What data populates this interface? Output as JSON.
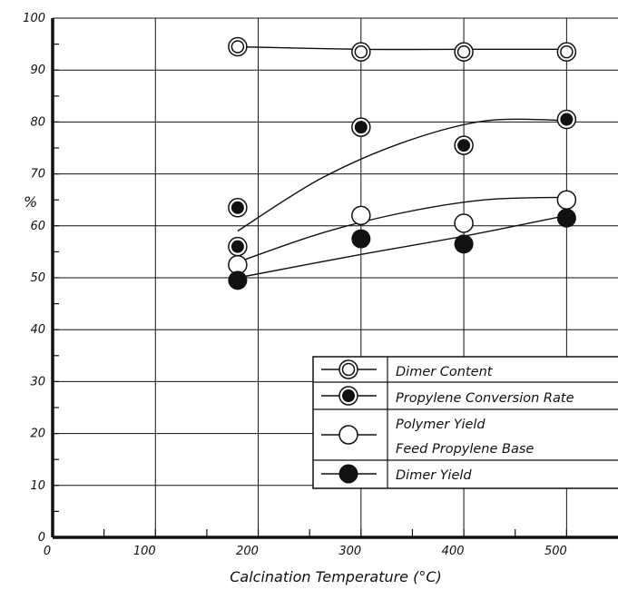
{
  "chart_data": {
    "type": "scatter",
    "title": "",
    "xlabel": "Calcination  Temperature  (°C)",
    "ylabel": "%",
    "xlim": [
      0,
      550
    ],
    "ylim": [
      0,
      100
    ],
    "x_ticks": [
      "0",
      "100",
      "200",
      "300",
      "400",
      "500"
    ],
    "y_ticks": [
      "0",
      "10",
      "20",
      "30",
      "40",
      "50",
      "60",
      "70",
      "80",
      "90",
      "100"
    ],
    "grid": true,
    "legend_position": "bottom-right",
    "series": [
      {
        "name": "Dimer  Content",
        "marker": "double-circle-open",
        "points": [
          {
            "x": 180,
            "y": 94.5
          },
          {
            "x": 300,
            "y": 93.5
          },
          {
            "x": 400,
            "y": 93.5
          },
          {
            "x": 500,
            "y": 93.5
          }
        ],
        "curve": [
          {
            "x": 180,
            "y": 94.5
          },
          {
            "x": 300,
            "y": 94
          },
          {
            "x": 400,
            "y": 94
          },
          {
            "x": 500,
            "y": 94
          }
        ]
      },
      {
        "name": "Propylene  Conversion  Rate",
        "marker": "ringed-dot",
        "points": [
          {
            "x": 180,
            "y": 63.5
          },
          {
            "x": 180,
            "y": 56
          },
          {
            "x": 300,
            "y": 79
          },
          {
            "x": 400,
            "y": 75.5
          },
          {
            "x": 500,
            "y": 80.5
          }
        ],
        "curve": [
          {
            "x": 180,
            "y": 59
          },
          {
            "x": 260,
            "y": 69
          },
          {
            "x": 340,
            "y": 76
          },
          {
            "x": 420,
            "y": 80.2
          },
          {
            "x": 500,
            "y": 80.3
          }
        ]
      },
      {
        "name": "Polymer  Yield",
        "name_line2": "Feed  Propylene  Base",
        "marker": "open-circle",
        "points": [
          {
            "x": 180,
            "y": 52.5
          },
          {
            "x": 300,
            "y": 62
          },
          {
            "x": 400,
            "y": 60.5
          },
          {
            "x": 500,
            "y": 65
          }
        ],
        "curve": [
          {
            "x": 180,
            "y": 53
          },
          {
            "x": 260,
            "y": 58.5
          },
          {
            "x": 340,
            "y": 62.5
          },
          {
            "x": 420,
            "y": 65
          },
          {
            "x": 500,
            "y": 65.5
          }
        ]
      },
      {
        "name": "Dimer  Yield",
        "marker": "filled-circle",
        "points": [
          {
            "x": 180,
            "y": 49.5
          },
          {
            "x": 300,
            "y": 57.5
          },
          {
            "x": 400,
            "y": 56.5
          },
          {
            "x": 500,
            "y": 61.5
          }
        ],
        "curve": [
          {
            "x": 180,
            "y": 50
          },
          {
            "x": 300,
            "y": 54.5
          },
          {
            "x": 400,
            "y": 58
          },
          {
            "x": 500,
            "y": 62
          }
        ]
      }
    ],
    "colors": {
      "ink": "#111111",
      "background": "#ffffff"
    }
  }
}
